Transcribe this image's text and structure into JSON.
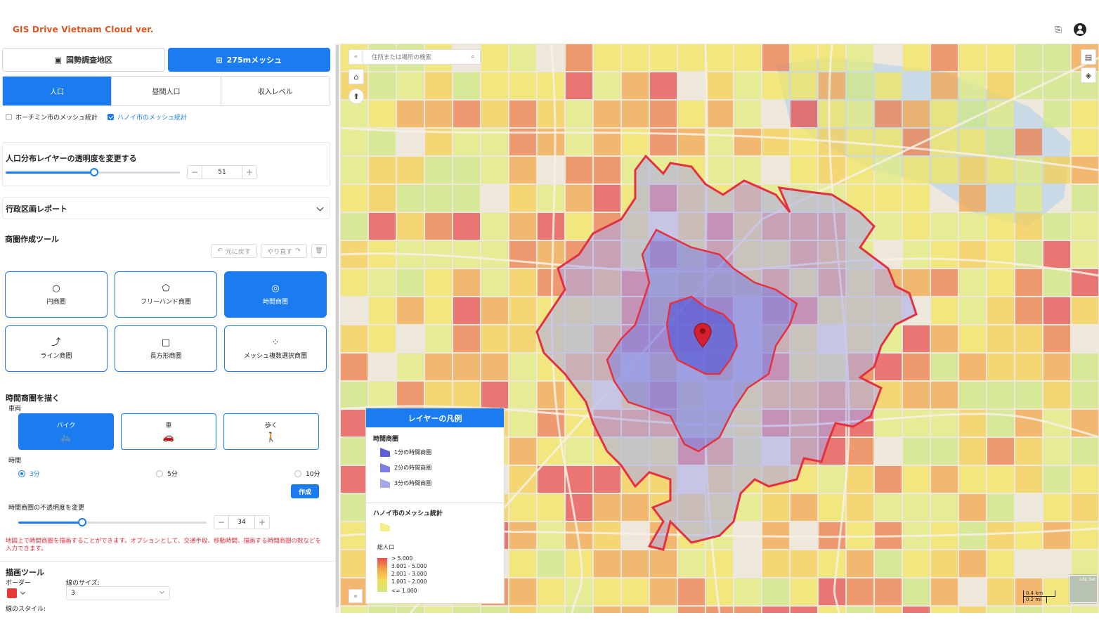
{
  "app": {
    "logo_text": "GIS Drive Vietnam Cloud ver."
  },
  "header_icons": {
    "translate_icon": "translate-icon",
    "user_icon": "user-icon"
  },
  "top_tabs": [
    {
      "label": "国勢調査地区",
      "icon": "calendar-icon",
      "active": false
    },
    {
      "label": "275mメッシュ",
      "icon": "grid-icon",
      "active": true
    }
  ],
  "sub_tabs": [
    {
      "label": "人口",
      "active": true
    },
    {
      "label": "昼間人口",
      "active": false
    },
    {
      "label": "収入レベル",
      "active": false
    }
  ],
  "mesh_checks": [
    {
      "label": "ホーチミン市のメッシュ統計",
      "checked": false
    },
    {
      "label": "ハノイ市のメッシュ統計",
      "checked": true
    }
  ],
  "opacity_panel": {
    "title": "人口分布レイヤーの透明度を変更する",
    "value": "51",
    "fraction": 0.51
  },
  "admin_report": {
    "title": "行政区画レポート"
  },
  "trade_tools": {
    "title": "商圏作成ツール",
    "undo": "元に戻す",
    "redo": "やり直す",
    "tools": [
      {
        "label": "円商圏",
        "icon": "circle-icon",
        "active": false
      },
      {
        "label": "フリーハンド商圏",
        "icon": "freehand-icon",
        "active": false
      },
      {
        "label": "時間商圏",
        "icon": "isochrone-icon",
        "active": true
      },
      {
        "label": "ライン商圏",
        "icon": "line-icon",
        "active": false
      },
      {
        "label": "長方形商圏",
        "icon": "rectangle-icon",
        "active": false
      },
      {
        "label": "メッシュ複数選択商圏",
        "icon": "multi-select-icon",
        "active": false
      }
    ]
  },
  "time_area": {
    "title": "時間商圏を描く",
    "vehicle_label": "車両",
    "vehicles": [
      {
        "label": "バイク",
        "icon": "bike-icon",
        "active": true
      },
      {
        "label": "車",
        "icon": "car-icon",
        "active": false
      },
      {
        "label": "歩く",
        "icon": "walk-icon",
        "active": false
      }
    ],
    "time_label": "時間",
    "times": [
      {
        "label": "3分",
        "selected": true
      },
      {
        "label": "5分",
        "selected": false
      },
      {
        "label": "10分",
        "selected": false
      }
    ],
    "create_label": "作成",
    "opacity_label": "時間商圏の不透明度を変更",
    "opacity_value": "34",
    "opacity_fraction": 0.34,
    "note": "地図上で時間商圏を描画することができます。オプションとして、交通手段、移動時間、描画する時間商圏の数などを入力できます。"
  },
  "draw_tools": {
    "title": "描画ツール",
    "border_label": "ボーダー",
    "line_size_label": "線のサイズ:",
    "line_size_value": "3",
    "line_style_label": "線のスタイル:",
    "border_color": "#e53935"
  },
  "map": {
    "search_placeholder": "住所または場所の検索",
    "scale_km": "0.4 km",
    "scale_mi": "0.2 mi",
    "minimap_label": "Lớp Sat"
  },
  "legend": {
    "title": "レイヤーの凡例",
    "time_section": "時間商圏",
    "time_items": [
      {
        "label": "1分の時間商圏",
        "color": "#5b5ed6"
      },
      {
        "label": "2分の時間商圏",
        "color": "#7d7fe0"
      },
      {
        "label": "3分の時間商圏",
        "color": "#a7a8ec"
      }
    ],
    "mesh_section": "ハノイ市のメッシュ統計",
    "population_label": "総人口",
    "population_items": [
      "> 5.000",
      "3.001 - 5.000",
      "2.001 - 3.000",
      "1.001 - 2.000",
      "<= 1.000"
    ]
  },
  "colors": {
    "accent": "#1a7cf0",
    "note": "#e0303a",
    "logo": "#e0541f",
    "isochrone_border": "#e53040"
  }
}
